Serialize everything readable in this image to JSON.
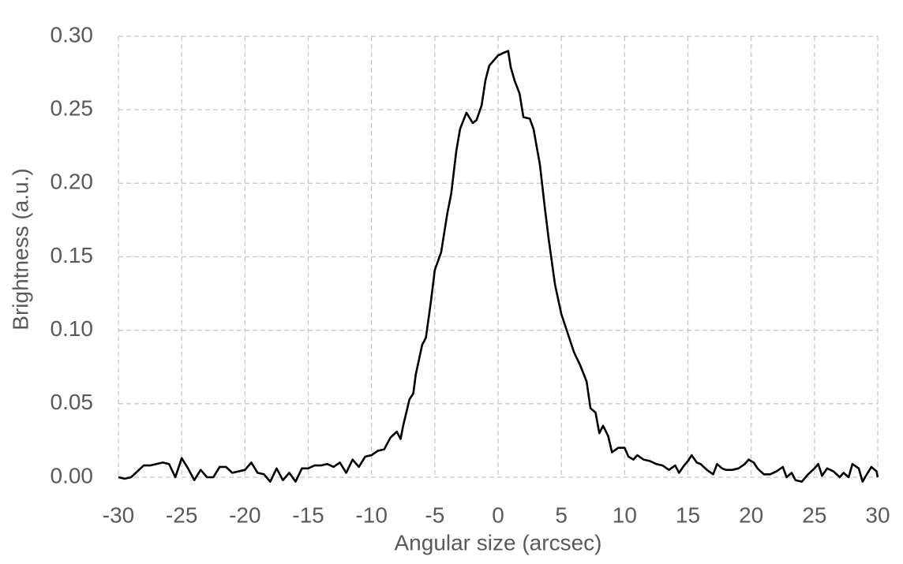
{
  "chart_data": {
    "type": "line",
    "x_label": "Angular size (arcsec)",
    "y_label": "Brightness (a.u.)",
    "xlim": [
      -30,
      30
    ],
    "ylim": [
      0,
      0.3
    ],
    "xticks": [
      -30,
      -25,
      -20,
      -15,
      -10,
      -5,
      0,
      5,
      10,
      15,
      20,
      25,
      30
    ],
    "yticks": [
      {
        "value": 0,
        "label": "0.00"
      },
      {
        "value": 0.05,
        "label": "0.05"
      },
      {
        "value": 0.1,
        "label": "0.10"
      },
      {
        "value": 0.15,
        "label": "0.15"
      },
      {
        "value": 0.2,
        "label": "0.20"
      },
      {
        "value": 0.25,
        "label": "0.25"
      },
      {
        "value": 0.3,
        "label": "0.30"
      }
    ],
    "grid": true,
    "x": [
      -30,
      -29.5,
      -29,
      -28.5,
      -28,
      -27.5,
      -27,
      -26.5,
      -26,
      -25.5,
      -25,
      -24.5,
      -24,
      -23.5,
      -23,
      -22.5,
      -22,
      -21.5,
      -21,
      -20.5,
      -20,
      -19.5,
      -19,
      -18.5,
      -18,
      -17.5,
      -17,
      -16.5,
      -16,
      -15.5,
      -15,
      -14.5,
      -14,
      -13.5,
      -13,
      -12.5,
      -12,
      -11.5,
      -11,
      -10.5,
      -10,
      -9.5,
      -9,
      -8.5,
      -8,
      -7.7,
      -7.5,
      -7,
      -6.7,
      -6.5,
      -6,
      -5.7,
      -5.3,
      -5,
      -4.5,
      -4,
      -3.7,
      -3.3,
      -3,
      -2.5,
      -2,
      -1.7,
      -1.3,
      -1,
      -0.7,
      -0.3,
      0,
      0.5,
      0.8,
      1,
      1.3,
      1.7,
      2,
      2.5,
      2.8,
      3.3,
      3.7,
      4,
      4.5,
      5,
      5.5,
      6,
      6.5,
      7,
      7.3,
      7.7,
      8,
      8.3,
      8.7,
      9,
      9.5,
      10,
      10.3,
      10.7,
      11,
      11.5,
      12,
      12.5,
      13,
      13.5,
      14,
      14.3,
      14.7,
      15,
      15.3,
      15.7,
      16,
      16.5,
      17,
      17.3,
      17.7,
      18,
      18.5,
      19,
      19.5,
      19.8,
      20.2,
      20.5,
      21,
      21.5,
      22,
      22.5,
      22.8,
      23.2,
      23.5,
      24,
      24.5,
      25,
      25.3,
      25.6,
      26,
      26.5,
      27,
      27.3,
      27.7,
      28,
      28.5,
      28.8,
      29,
      29.5,
      29.9,
      30
    ],
    "series": [
      {
        "name": "Brightness",
        "color": "#000000",
        "values": [
          0,
          -0.001,
          0,
          0.004,
          0.008,
          0.008,
          0.009,
          0.01,
          0.009,
          0,
          0.013,
          0.006,
          -0.002,
          0.005,
          0,
          0,
          0.007,
          0.007,
          0.003,
          0.004,
          0.005,
          0.01,
          0.003,
          0.002,
          -0.003,
          0.006,
          -0.002,
          0.003,
          -0.003,
          0.006,
          0.006,
          0.008,
          0.008,
          0.009,
          0.007,
          0.01,
          0.003,
          0.012,
          0.007,
          0.014,
          0.015,
          0.018,
          0.019,
          0.027,
          0.031,
          0.026,
          0.035,
          0.053,
          0.057,
          0.07,
          0.09,
          0.095,
          0.12,
          0.141,
          0.153,
          0.18,
          0.193,
          0.222,
          0.237,
          0.248,
          0.241,
          0.243,
          0.253,
          0.27,
          0.28,
          0.284,
          0.287,
          0.289,
          0.29,
          0.279,
          0.27,
          0.261,
          0.245,
          0.244,
          0.237,
          0.213,
          0.183,
          0.162,
          0.131,
          0.111,
          0.098,
          0.085,
          0.076,
          0.065,
          0.047,
          0.044,
          0.03,
          0.035,
          0.028,
          0.017,
          0.02,
          0.02,
          0.014,
          0.012,
          0.015,
          0.012,
          0.011,
          0.009,
          0.008,
          0.005,
          0.008,
          0.003,
          0.008,
          0.011,
          0.015,
          0.01,
          0.009,
          0.005,
          0.002,
          0.009,
          0.006,
          0.005,
          0.005,
          0.006,
          0.009,
          0.012,
          0.01,
          0.006,
          0.002,
          0.002,
          0.004,
          0.007,
          0,
          0.003,
          -0.002,
          -0.003,
          0.002,
          0.006,
          0.009,
          0.001,
          0.006,
          0.004,
          0,
          0.003,
          0,
          0.009,
          0.006,
          -0.003,
          0,
          0.007,
          0.004,
          0
        ]
      }
    ]
  }
}
